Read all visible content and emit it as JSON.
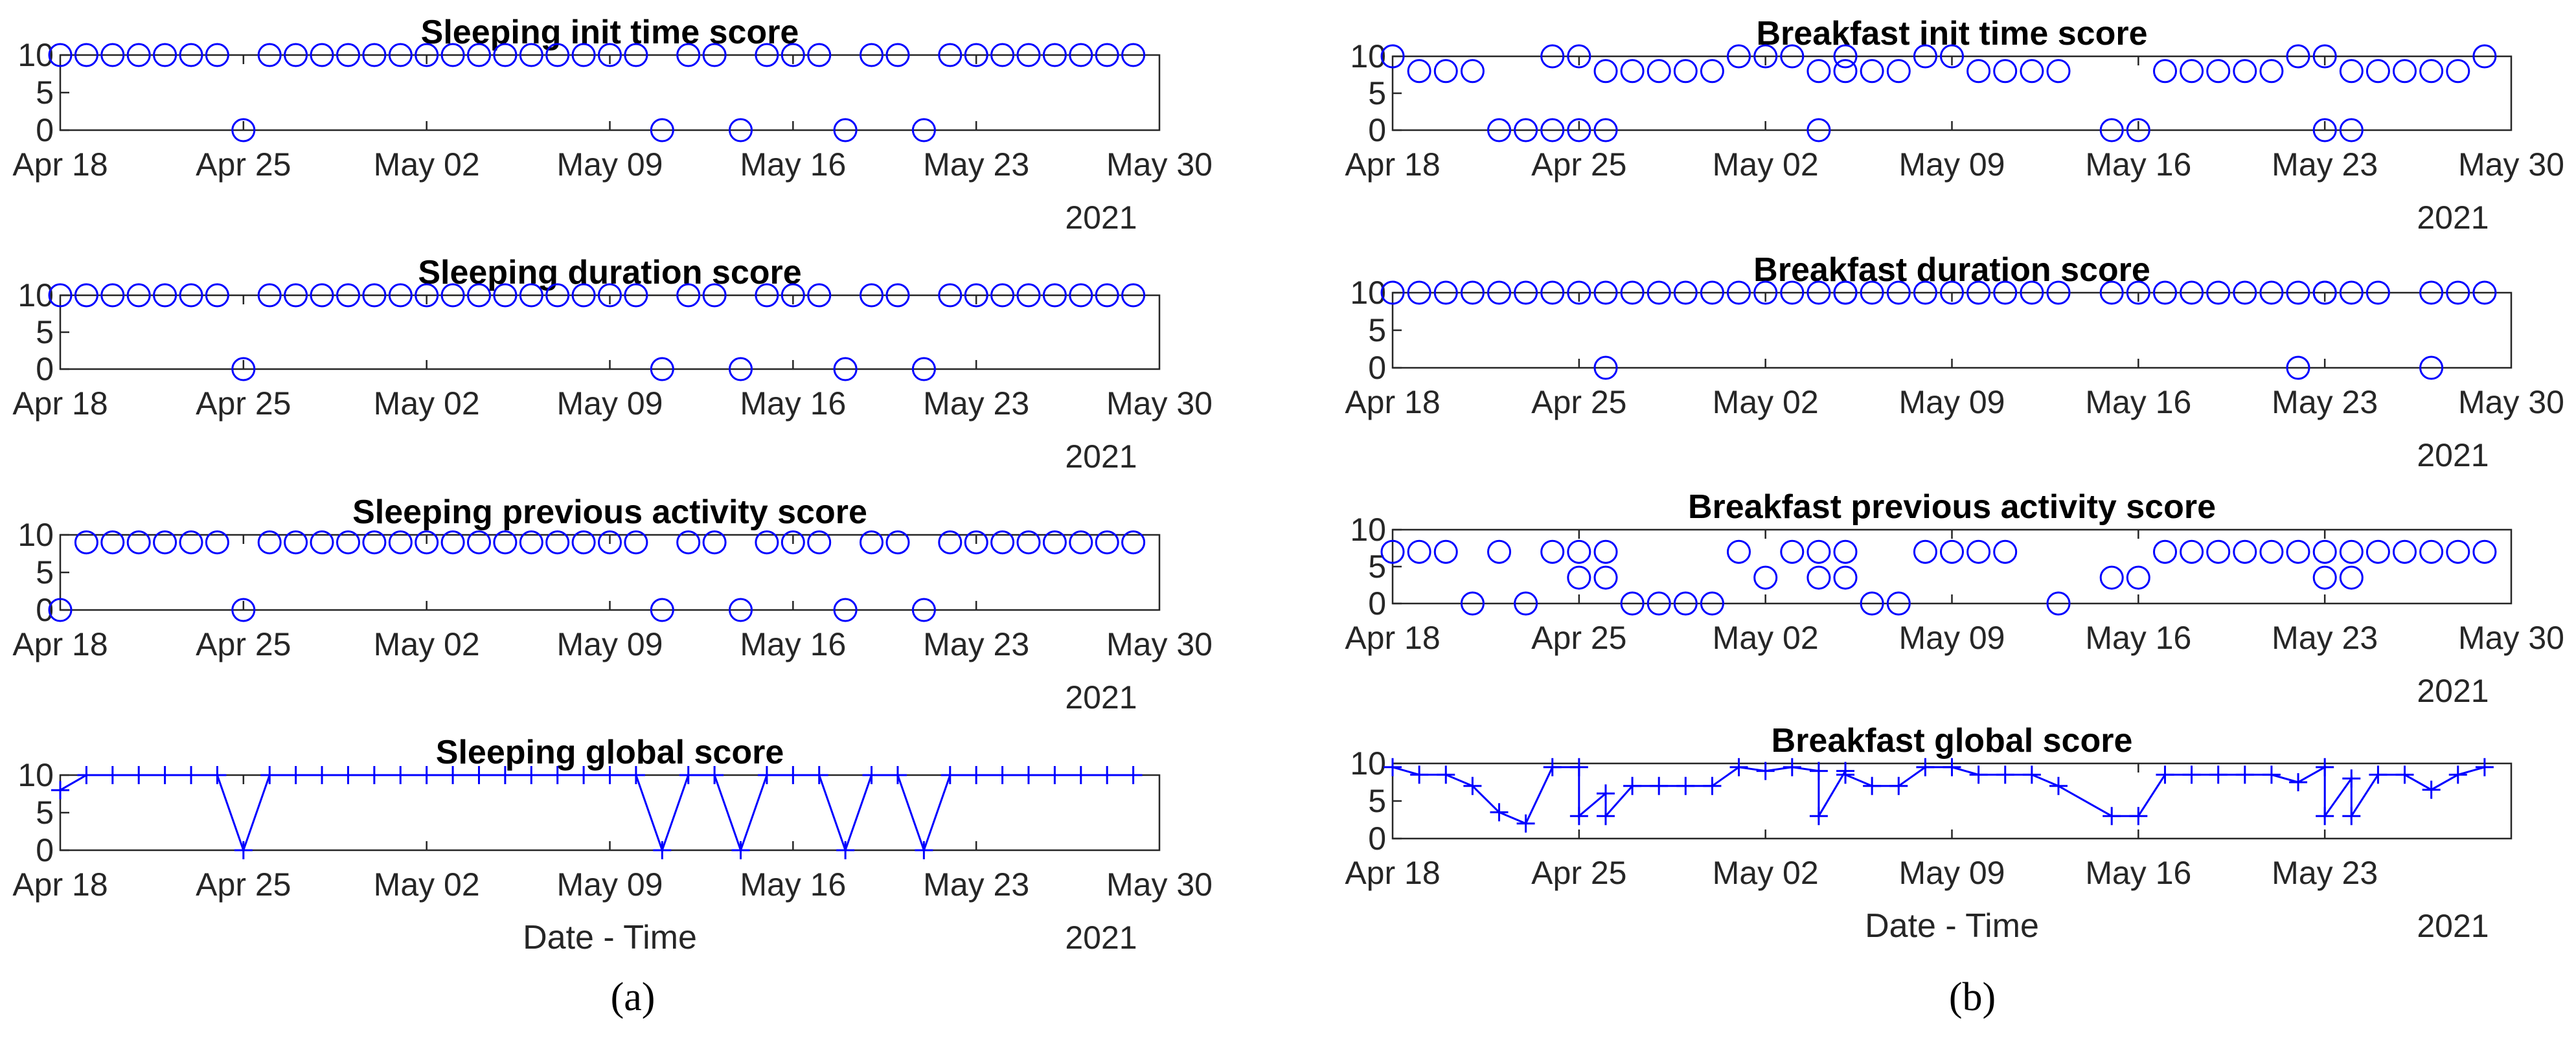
{
  "figure": {
    "colors": {
      "series": "#0000ff",
      "axis": "#262626",
      "title": "#000000"
    },
    "panel_labels": [
      "(a)",
      "(b)"
    ]
  },
  "chart_data": [
    {
      "type": "scatter",
      "marker": "circle",
      "title": "Sleeping init time score",
      "xlabel": "",
      "year_label": "2021",
      "x_ticks": [
        "Apr 18",
        "Apr 25",
        "May 02",
        "May 09",
        "May 16",
        "May 23",
        "May 30"
      ],
      "xlim": [
        "2021-04-18",
        "2021-05-30"
      ],
      "ylim": [
        0,
        10
      ],
      "y_ticks": [
        "0",
        "5",
        "10"
      ],
      "x": [
        "2021-04-18",
        "2021-04-19",
        "2021-04-20",
        "2021-04-21",
        "2021-04-22",
        "2021-04-23",
        "2021-04-24",
        "2021-04-25",
        "2021-04-26",
        "2021-04-27",
        "2021-04-28",
        "2021-04-29",
        "2021-04-30",
        "2021-05-01",
        "2021-05-02",
        "2021-05-03",
        "2021-05-04",
        "2021-05-05",
        "2021-05-06",
        "2021-05-07",
        "2021-05-08",
        "2021-05-09",
        "2021-05-10",
        "2021-05-11",
        "2021-05-12",
        "2021-05-13",
        "2021-05-14",
        "2021-05-15",
        "2021-05-16",
        "2021-05-17",
        "2021-05-18",
        "2021-05-19",
        "2021-05-20",
        "2021-05-21",
        "2021-05-22",
        "2021-05-23",
        "2021-05-24",
        "2021-05-25",
        "2021-05-26",
        "2021-05-27",
        "2021-05-28",
        "2021-05-29"
      ],
      "y": [
        10,
        10,
        10,
        10,
        10,
        10,
        10,
        0,
        10,
        10,
        10,
        10,
        10,
        10,
        10,
        10,
        10,
        10,
        10,
        10,
        10,
        10,
        10,
        0,
        10,
        10,
        0,
        10,
        10,
        10,
        0,
        10,
        10,
        0,
        10,
        10,
        10,
        10,
        10,
        10,
        10,
        10
      ]
    },
    {
      "type": "scatter",
      "marker": "circle",
      "title": "Sleeping duration score",
      "xlabel": "",
      "year_label": "2021",
      "x_ticks": [
        "Apr 18",
        "Apr 25",
        "May 02",
        "May 09",
        "May 16",
        "May 23",
        "May 30"
      ],
      "xlim": [
        "2021-04-18",
        "2021-05-30"
      ],
      "ylim": [
        0,
        10
      ],
      "y_ticks": [
        "0",
        "5",
        "10"
      ],
      "x": [
        "2021-04-18",
        "2021-04-19",
        "2021-04-20",
        "2021-04-21",
        "2021-04-22",
        "2021-04-23",
        "2021-04-24",
        "2021-04-25",
        "2021-04-26",
        "2021-04-27",
        "2021-04-28",
        "2021-04-29",
        "2021-04-30",
        "2021-05-01",
        "2021-05-02",
        "2021-05-03",
        "2021-05-04",
        "2021-05-05",
        "2021-05-06",
        "2021-05-07",
        "2021-05-08",
        "2021-05-09",
        "2021-05-10",
        "2021-05-11",
        "2021-05-12",
        "2021-05-13",
        "2021-05-14",
        "2021-05-15",
        "2021-05-16",
        "2021-05-17",
        "2021-05-18",
        "2021-05-19",
        "2021-05-20",
        "2021-05-21",
        "2021-05-22",
        "2021-05-23",
        "2021-05-24",
        "2021-05-25",
        "2021-05-26",
        "2021-05-27",
        "2021-05-28",
        "2021-05-29"
      ],
      "y": [
        10,
        10,
        10,
        10,
        10,
        10,
        10,
        0,
        10,
        10,
        10,
        10,
        10,
        10,
        10,
        10,
        10,
        10,
        10,
        10,
        10,
        10,
        10,
        0,
        10,
        10,
        0,
        10,
        10,
        10,
        0,
        10,
        10,
        0,
        10,
        10,
        10,
        10,
        10,
        10,
        10,
        10
      ]
    },
    {
      "type": "scatter",
      "marker": "circle",
      "title": "Sleeping previous activity score",
      "xlabel": "",
      "year_label": "2021",
      "x_ticks": [
        "Apr 18",
        "Apr 25",
        "May 02",
        "May 09",
        "May 16",
        "May 23",
        "May 30"
      ],
      "xlim": [
        "2021-04-18",
        "2021-05-30"
      ],
      "ylim": [
        0,
        10
      ],
      "y_ticks": [
        "0",
        "5",
        "10"
      ],
      "x": [
        "2021-04-18",
        "2021-04-19",
        "2021-04-20",
        "2021-04-21",
        "2021-04-22",
        "2021-04-23",
        "2021-04-24",
        "2021-04-25",
        "2021-04-26",
        "2021-04-27",
        "2021-04-28",
        "2021-04-29",
        "2021-04-30",
        "2021-05-01",
        "2021-05-02",
        "2021-05-03",
        "2021-05-04",
        "2021-05-05",
        "2021-05-06",
        "2021-05-07",
        "2021-05-08",
        "2021-05-09",
        "2021-05-10",
        "2021-05-11",
        "2021-05-12",
        "2021-05-13",
        "2021-05-14",
        "2021-05-15",
        "2021-05-16",
        "2021-05-17",
        "2021-05-18",
        "2021-05-19",
        "2021-05-20",
        "2021-05-21",
        "2021-05-22",
        "2021-05-23",
        "2021-05-24",
        "2021-05-25",
        "2021-05-26",
        "2021-05-27",
        "2021-05-28",
        "2021-05-29"
      ],
      "y": [
        0,
        9,
        9,
        9,
        9,
        9,
        9,
        0,
        9,
        9,
        9,
        9,
        9,
        9,
        9,
        9,
        9,
        9,
        9,
        9,
        9,
        9,
        9,
        0,
        9,
        9,
        0,
        9,
        9,
        9,
        0,
        9,
        9,
        0,
        9,
        9,
        9,
        9,
        9,
        9,
        9,
        9
      ]
    },
    {
      "type": "line",
      "marker": "plus",
      "title": "Sleeping global score",
      "xlabel": "Date - Time",
      "year_label": "2021",
      "x_ticks": [
        "Apr 18",
        "Apr 25",
        "May 02",
        "May 09",
        "May 16",
        "May 23",
        "May 30"
      ],
      "xlim": [
        "2021-04-18",
        "2021-05-30"
      ],
      "ylim": [
        0,
        10
      ],
      "y_ticks": [
        "0",
        "5",
        "10"
      ],
      "x": [
        "2021-04-18",
        "2021-04-19",
        "2021-04-20",
        "2021-04-21",
        "2021-04-22",
        "2021-04-23",
        "2021-04-24",
        "2021-04-25",
        "2021-04-26",
        "2021-04-27",
        "2021-04-28",
        "2021-04-29",
        "2021-04-30",
        "2021-05-01",
        "2021-05-02",
        "2021-05-03",
        "2021-05-04",
        "2021-05-05",
        "2021-05-06",
        "2021-05-07",
        "2021-05-08",
        "2021-05-09",
        "2021-05-10",
        "2021-05-11",
        "2021-05-12",
        "2021-05-13",
        "2021-05-14",
        "2021-05-15",
        "2021-05-16",
        "2021-05-17",
        "2021-05-18",
        "2021-05-19",
        "2021-05-20",
        "2021-05-21",
        "2021-05-22",
        "2021-05-23",
        "2021-05-24",
        "2021-05-25",
        "2021-05-26",
        "2021-05-27",
        "2021-05-28",
        "2021-05-29"
      ],
      "y": [
        8,
        10,
        10,
        10,
        10,
        10,
        10,
        0,
        10,
        10,
        10,
        10,
        10,
        10,
        10,
        10,
        10,
        10,
        10,
        10,
        10,
        10,
        10,
        0,
        10,
        10,
        0,
        10,
        10,
        10,
        0,
        10,
        10,
        0,
        10,
        10,
        10,
        10,
        10,
        10,
        10,
        10
      ]
    },
    {
      "type": "scatter",
      "marker": "circle",
      "title": "Breakfast init time score",
      "xlabel": "",
      "year_label": "2021",
      "x_ticks": [
        "Apr 18",
        "Apr 25",
        "May 02",
        "May 09",
        "May 16",
        "May 23",
        "May 30"
      ],
      "xlim": [
        "2021-04-18",
        "2021-05-30"
      ],
      "ylim": [
        0,
        10
      ],
      "y_ticks": [
        "0",
        "5",
        "10"
      ],
      "x": [
        "2021-04-18",
        "2021-04-19",
        "2021-04-20",
        "2021-04-21",
        "2021-04-22",
        "2021-04-23",
        "2021-04-24",
        "2021-04-24",
        "2021-04-25",
        "2021-04-25",
        "2021-04-26",
        "2021-04-26",
        "2021-04-27",
        "2021-04-28",
        "2021-04-29",
        "2021-04-30",
        "2021-05-01",
        "2021-05-02",
        "2021-05-03",
        "2021-05-04",
        "2021-05-04",
        "2021-05-05",
        "2021-05-05",
        "2021-05-06",
        "2021-05-07",
        "2021-05-08",
        "2021-05-09",
        "2021-05-10",
        "2021-05-11",
        "2021-05-12",
        "2021-05-13",
        "2021-05-15",
        "2021-05-16",
        "2021-05-17",
        "2021-05-18",
        "2021-05-19",
        "2021-05-20",
        "2021-05-21",
        "2021-05-22",
        "2021-05-23",
        "2021-05-23",
        "2021-05-24",
        "2021-05-24",
        "2021-05-25",
        "2021-05-26",
        "2021-05-27",
        "2021-05-28",
        "2021-05-29"
      ],
      "y": [
        10,
        8,
        8,
        8,
        0,
        0,
        10,
        0,
        10,
        0,
        8,
        0,
        8,
        8,
        8,
        8,
        10,
        10,
        10,
        8,
        0,
        8,
        10,
        8,
        8,
        10,
        10,
        8,
        8,
        8,
        8,
        0,
        0,
        8,
        8,
        8,
        8,
        8,
        10,
        0,
        10,
        8,
        0,
        8,
        8,
        8,
        8,
        10
      ]
    },
    {
      "type": "scatter",
      "marker": "circle",
      "title": "Breakfast duration score",
      "xlabel": "",
      "year_label": "2021",
      "x_ticks": [
        "Apr 18",
        "Apr 25",
        "May 02",
        "May 09",
        "May 16",
        "May 23",
        "May 30"
      ],
      "xlim": [
        "2021-04-18",
        "2021-05-30"
      ],
      "ylim": [
        0,
        10
      ],
      "y_ticks": [
        "0",
        "5",
        "10"
      ],
      "x": [
        "2021-04-18",
        "2021-04-19",
        "2021-04-20",
        "2021-04-21",
        "2021-04-22",
        "2021-04-23",
        "2021-04-24",
        "2021-04-25",
        "2021-04-26",
        "2021-04-26",
        "2021-04-27",
        "2021-04-28",
        "2021-04-29",
        "2021-04-30",
        "2021-05-01",
        "2021-05-02",
        "2021-05-03",
        "2021-05-04",
        "2021-05-05",
        "2021-05-05",
        "2021-05-06",
        "2021-05-07",
        "2021-05-08",
        "2021-05-09",
        "2021-05-10",
        "2021-05-11",
        "2021-05-12",
        "2021-05-13",
        "2021-05-15",
        "2021-05-16",
        "2021-05-17",
        "2021-05-18",
        "2021-05-19",
        "2021-05-20",
        "2021-05-21",
        "2021-05-22",
        "2021-05-22",
        "2021-05-23",
        "2021-05-23",
        "2021-05-24",
        "2021-05-25",
        "2021-05-27",
        "2021-05-27",
        "2021-05-28",
        "2021-05-29"
      ],
      "y": [
        10,
        10,
        10,
        10,
        10,
        10,
        10,
        10,
        10,
        0,
        10,
        10,
        10,
        10,
        10,
        10,
        10,
        10,
        10,
        10,
        10,
        10,
        10,
        10,
        10,
        10,
        10,
        10,
        10,
        10,
        10,
        10,
        10,
        10,
        10,
        10,
        0,
        10,
        10,
        10,
        10,
        0,
        10,
        10,
        10
      ]
    },
    {
      "type": "scatter",
      "marker": "circle",
      "title": "Breakfast previous activity score",
      "xlabel": "",
      "year_label": "2021",
      "x_ticks": [
        "Apr 18",
        "Apr 25",
        "May 02",
        "May 09",
        "May 16",
        "May 23",
        "May 30"
      ],
      "xlim": [
        "2021-04-18",
        "2021-05-30"
      ],
      "ylim": [
        0,
        10
      ],
      "y_ticks": [
        "0",
        "5",
        "10"
      ],
      "x": [
        "2021-04-18",
        "2021-04-19",
        "2021-04-20",
        "2021-04-21",
        "2021-04-22",
        "2021-04-23",
        "2021-04-24",
        "2021-04-25",
        "2021-04-25",
        "2021-04-26",
        "2021-04-26",
        "2021-04-27",
        "2021-04-28",
        "2021-04-29",
        "2021-04-30",
        "2021-05-01",
        "2021-05-02",
        "2021-05-03",
        "2021-05-04",
        "2021-05-04",
        "2021-05-05",
        "2021-05-05",
        "2021-05-06",
        "2021-05-07",
        "2021-05-08",
        "2021-05-09",
        "2021-05-10",
        "2021-05-11",
        "2021-05-13",
        "2021-05-15",
        "2021-05-16",
        "2021-05-17",
        "2021-05-18",
        "2021-05-19",
        "2021-05-20",
        "2021-05-21",
        "2021-05-22",
        "2021-05-23",
        "2021-05-23",
        "2021-05-24",
        "2021-05-24",
        "2021-05-25",
        "2021-05-26",
        "2021-05-27",
        "2021-05-28",
        "2021-05-29"
      ],
      "y": [
        7,
        7,
        7,
        0,
        7,
        0,
        7,
        7,
        3.5,
        7,
        3.5,
        0,
        0,
        0,
        0,
        7,
        3.5,
        7,
        7,
        3.5,
        7,
        3.5,
        0,
        0,
        7,
        7,
        7,
        7,
        0,
        3.5,
        3.5,
        7,
        7,
        7,
        7,
        7,
        7,
        7,
        3.5,
        7,
        3.5,
        7,
        7,
        7,
        7,
        7
      ]
    },
    {
      "type": "line",
      "marker": "plus",
      "title": "Breakfast global score",
      "xlabel": "Date - Time",
      "year_label": "2021",
      "x_ticks": [
        "Apr 18",
        "Apr 25",
        "May 02",
        "May 09",
        "May 16",
        "May 23"
      ],
      "xlim": [
        "2021-04-18",
        "2021-05-30"
      ],
      "ylim": [
        0,
        10
      ],
      "y_ticks": [
        "0",
        "5",
        "10"
      ],
      "x": [
        "2021-04-18",
        "2021-04-19",
        "2021-04-20",
        "2021-04-21",
        "2021-04-22",
        "2021-04-23",
        "2021-04-24",
        "2021-04-25",
        "2021-04-25",
        "2021-04-26",
        "2021-04-26",
        "2021-04-27",
        "2021-04-28",
        "2021-04-29",
        "2021-04-30",
        "2021-05-01",
        "2021-05-02",
        "2021-05-03",
        "2021-05-04",
        "2021-05-04",
        "2021-05-05",
        "2021-05-05",
        "2021-05-06",
        "2021-05-07",
        "2021-05-08",
        "2021-05-09",
        "2021-05-10",
        "2021-05-11",
        "2021-05-12",
        "2021-05-13",
        "2021-05-15",
        "2021-05-16",
        "2021-05-17",
        "2021-05-18",
        "2021-05-19",
        "2021-05-20",
        "2021-05-21",
        "2021-05-22",
        "2021-05-23",
        "2021-05-23",
        "2021-05-24",
        "2021-05-24",
        "2021-05-25",
        "2021-05-26",
        "2021-05-27",
        "2021-05-28",
        "2021-05-29"
      ],
      "y": [
        9.5,
        8.5,
        8.5,
        7,
        3.5,
        2,
        9.5,
        9.5,
        3,
        6,
        3,
        7,
        7,
        7,
        7,
        9.5,
        9,
        9.5,
        9,
        3,
        9,
        8.5,
        7,
        7,
        9.5,
        9.5,
        8.5,
        8.5,
        8.5,
        7,
        3,
        3,
        8.5,
        8.5,
        8.5,
        8.5,
        8.5,
        7.5,
        9.5,
        3,
        8,
        3,
        8.5,
        8.5,
        6.5,
        8.5,
        9.5
      ]
    }
  ]
}
